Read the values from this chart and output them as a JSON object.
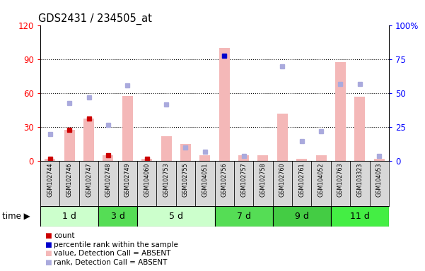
{
  "title": "GDS2431 / 234505_at",
  "samples": [
    "GSM102744",
    "GSM102746",
    "GSM102747",
    "GSM102748",
    "GSM102749",
    "GSM104060",
    "GSM102753",
    "GSM102755",
    "GSM104051",
    "GSM102756",
    "GSM102757",
    "GSM102758",
    "GSM102760",
    "GSM102761",
    "GSM104052",
    "GSM102763",
    "GSM103323",
    "GSM104053"
  ],
  "time_groups": [
    {
      "label": "1 d",
      "start": 0,
      "end": 3,
      "color": "#ccffcc"
    },
    {
      "label": "3 d",
      "start": 3,
      "end": 5,
      "color": "#55dd55"
    },
    {
      "label": "5 d",
      "start": 5,
      "end": 9,
      "color": "#ccffcc"
    },
    {
      "label": "7 d",
      "start": 9,
      "end": 12,
      "color": "#55dd55"
    },
    {
      "label": "9 d",
      "start": 12,
      "end": 15,
      "color": "#44cc44"
    },
    {
      "label": "11 d",
      "start": 15,
      "end": 18,
      "color": "#44ee44"
    }
  ],
  "bar_values": [
    2,
    28,
    38,
    5,
    58,
    2,
    22,
    15,
    5,
    100,
    5,
    5,
    42,
    2,
    5,
    88,
    57,
    2
  ],
  "rank_absent": [
    20,
    43,
    47,
    27,
    56,
    -1,
    42,
    10,
    7,
    78,
    4,
    -1,
    70,
    15,
    22,
    57,
    57,
    4
  ],
  "count_vals": [
    2,
    28,
    38,
    5,
    -1,
    2,
    -1,
    -1,
    -1,
    -1,
    -1,
    -1,
    -1,
    -1,
    -1,
    -1,
    -1,
    -1
  ],
  "rank_present": [
    -1,
    -1,
    -1,
    -1,
    -1,
    -1,
    -1,
    -1,
    -1,
    78,
    -1,
    -1,
    -1,
    -1,
    -1,
    -1,
    -1,
    -1
  ],
  "ylim_left": [
    0,
    120
  ],
  "ylim_right": [
    0,
    100
  ],
  "yticks_left": [
    0,
    30,
    60,
    90,
    120
  ],
  "ytick_labels_left": [
    "0",
    "30",
    "60",
    "90",
    "120"
  ],
  "yticks_right": [
    0,
    25,
    50,
    75,
    100
  ],
  "ytick_labels_right": [
    "0",
    "25",
    "50",
    "75",
    "100%"
  ],
  "bar_color": "#f4b8b8",
  "dot_color_count": "#cc0000",
  "dot_color_rank_present": "#0000cc",
  "dot_color_rank_absent": "#aaaadd",
  "bg_color": "#ffffff",
  "legend_colors": [
    "#cc0000",
    "#0000cc",
    "#f4b8b8",
    "#aaaadd"
  ],
  "legend_labels": [
    "count",
    "percentile rank within the sample",
    "value, Detection Call = ABSENT",
    "rank, Detection Call = ABSENT"
  ]
}
